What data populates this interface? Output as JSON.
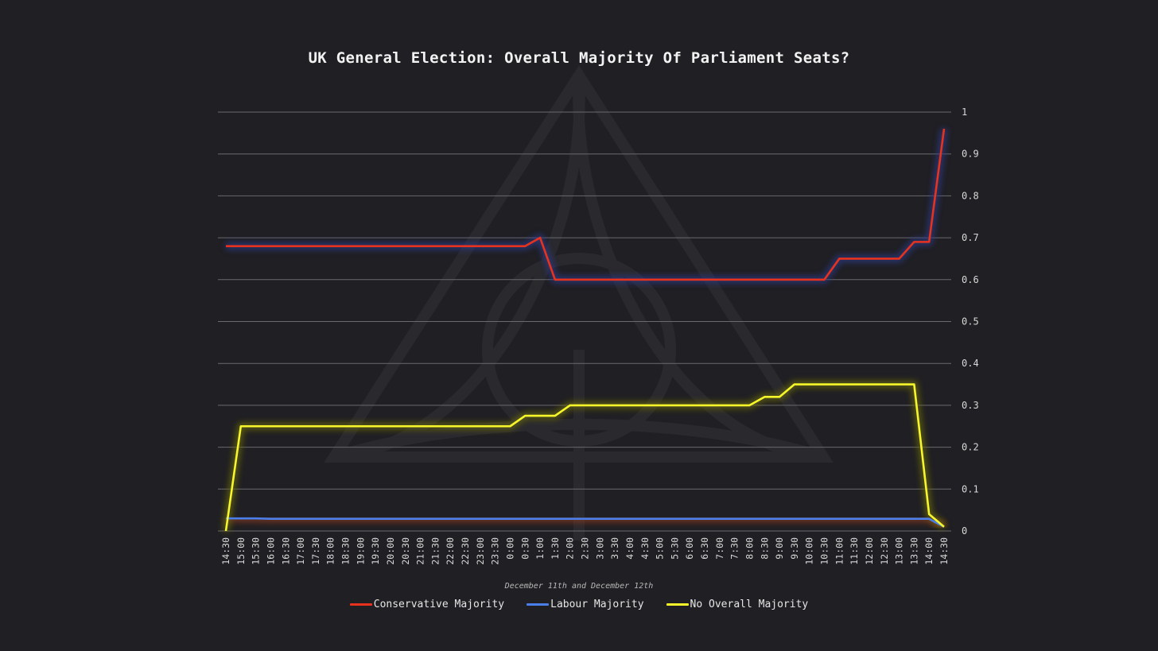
{
  "chart_data": {
    "type": "line",
    "title": "UK General Election: Overall Majority Of Parliament Seats?",
    "xlabel": "December 11th and December 12th",
    "ylabel": "",
    "ylim": [
      0,
      1
    ],
    "yticks": [
      0,
      0.1,
      0.2,
      0.3,
      0.4,
      0.5,
      0.6,
      0.7,
      0.8,
      0.9,
      1
    ],
    "ytick_labels": [
      "0",
      "0.1",
      "0.2",
      "0.3",
      "0.4",
      "0.5",
      "0.6",
      "0.7",
      "0.8",
      "0.9",
      "1"
    ],
    "grid": true,
    "legend_position": "bottom-center",
    "x": [
      "14:30",
      "15:00",
      "15:30",
      "16:00",
      "16:30",
      "17:00",
      "17:30",
      "18:00",
      "18:30",
      "19:00",
      "19:30",
      "20:00",
      "20:30",
      "21:00",
      "21:30",
      "22:00",
      "22:30",
      "23:00",
      "23:30",
      "0:00",
      "0:30",
      "1:00",
      "1:30",
      "2:00",
      "2:30",
      "3:00",
      "3:30",
      "4:00",
      "4:30",
      "5:00",
      "5:30",
      "6:00",
      "6:30",
      "7:00",
      "7:30",
      "8:00",
      "8:30",
      "9:00",
      "9:30",
      "10:00",
      "10:30",
      "11:00",
      "11:30",
      "12:00",
      "12:30",
      "13:00",
      "13:30",
      "14:00",
      "14:30"
    ],
    "series": [
      {
        "name": "Conservative Majority",
        "color": "#e8321e",
        "glow": "#2b3a8a",
        "values": [
          0.68,
          0.68,
          0.68,
          0.68,
          0.68,
          0.68,
          0.68,
          0.68,
          0.68,
          0.68,
          0.68,
          0.68,
          0.68,
          0.68,
          0.68,
          0.68,
          0.68,
          0.68,
          0.68,
          0.68,
          0.68,
          0.7,
          0.6,
          0.6,
          0.6,
          0.6,
          0.6,
          0.6,
          0.6,
          0.6,
          0.6,
          0.6,
          0.6,
          0.6,
          0.6,
          0.6,
          0.6,
          0.6,
          0.6,
          0.6,
          0.6,
          0.65,
          0.65,
          0.65,
          0.65,
          0.65,
          0.69,
          0.69,
          0.96
        ]
      },
      {
        "name": "Labour Majority",
        "color": "#4a7ee8",
        "glow": "#8a3a20",
        "values": [
          0.03,
          0.03,
          0.03,
          0.029,
          0.029,
          0.029,
          0.029,
          0.029,
          0.029,
          0.029,
          0.029,
          0.029,
          0.029,
          0.029,
          0.029,
          0.029,
          0.029,
          0.029,
          0.029,
          0.029,
          0.029,
          0.029,
          0.029,
          0.029,
          0.029,
          0.029,
          0.029,
          0.029,
          0.029,
          0.029,
          0.029,
          0.029,
          0.029,
          0.029,
          0.029,
          0.029,
          0.029,
          0.029,
          0.029,
          0.029,
          0.029,
          0.029,
          0.029,
          0.029,
          0.029,
          0.029,
          0.029,
          0.029,
          0.01
        ]
      },
      {
        "name": "No Overall Majority",
        "color": "#f6f62a",
        "glow": "#6a6a10",
        "values": [
          0.0,
          0.25,
          0.25,
          0.25,
          0.25,
          0.25,
          0.25,
          0.25,
          0.25,
          0.25,
          0.25,
          0.25,
          0.25,
          0.25,
          0.25,
          0.25,
          0.25,
          0.25,
          0.25,
          0.25,
          0.275,
          0.275,
          0.275,
          0.3,
          0.3,
          0.3,
          0.3,
          0.3,
          0.3,
          0.3,
          0.3,
          0.3,
          0.3,
          0.3,
          0.3,
          0.3,
          0.32,
          0.32,
          0.35,
          0.35,
          0.35,
          0.35,
          0.35,
          0.35,
          0.35,
          0.35,
          0.35,
          0.04,
          0.01
        ]
      }
    ]
  }
}
